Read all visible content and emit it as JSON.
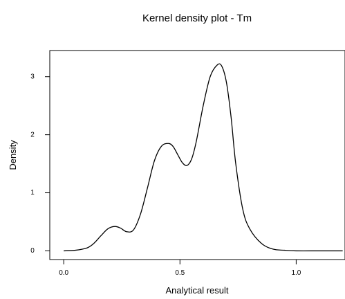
{
  "chart_data": {
    "type": "line",
    "title": "Kernel density plot - Tm",
    "xlabel": "Analytical result",
    "ylabel": "Density",
    "xlim": [
      -0.06,
      1.21
    ],
    "ylim": [
      -0.15,
      3.45
    ],
    "x_ticks": [
      0.0,
      0.5,
      1.0
    ],
    "x_tick_labels": [
      "0.0",
      "0.5",
      "1.0"
    ],
    "y_ticks": [
      0,
      1,
      2,
      3
    ],
    "y_tick_labels": [
      "0",
      "1",
      "2",
      "3"
    ],
    "grid": false,
    "series": [
      {
        "x": [
          0.0,
          0.05,
          0.1,
          0.13,
          0.16,
          0.19,
          0.22,
          0.245,
          0.27,
          0.3,
          0.33,
          0.36,
          0.39,
          0.42,
          0.45,
          0.47,
          0.49,
          0.51,
          0.53,
          0.55,
          0.57,
          0.6,
          0.63,
          0.66,
          0.68,
          0.7,
          0.72,
          0.74,
          0.77,
          0.8,
          0.85,
          0.9,
          0.95,
          1.0,
          1.1,
          1.2
        ],
        "y": [
          0.0,
          0.01,
          0.05,
          0.13,
          0.26,
          0.38,
          0.42,
          0.39,
          0.33,
          0.36,
          0.63,
          1.08,
          1.55,
          1.8,
          1.85,
          1.8,
          1.66,
          1.52,
          1.47,
          1.58,
          1.88,
          2.5,
          3.0,
          3.2,
          3.18,
          2.9,
          2.3,
          1.5,
          0.72,
          0.38,
          0.13,
          0.03,
          0.01,
          0.0,
          0.0,
          0.0
        ]
      }
    ]
  }
}
